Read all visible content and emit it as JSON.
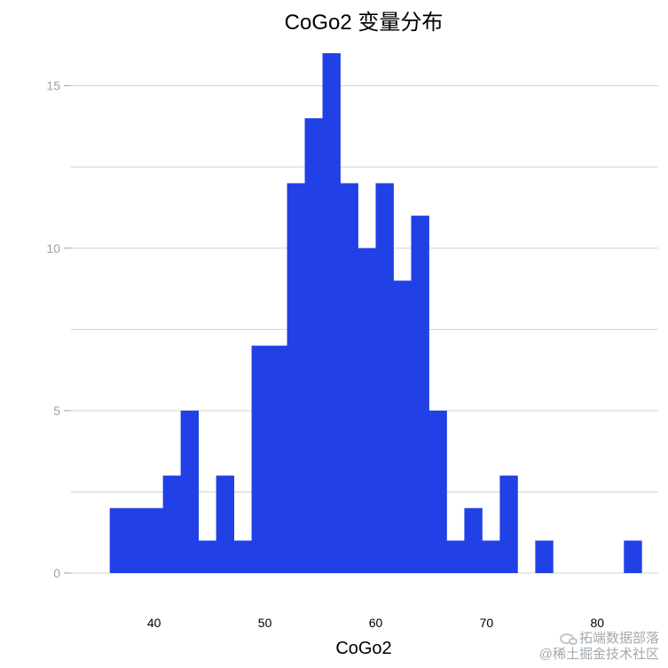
{
  "chart_data": {
    "type": "bar",
    "title": "CoGo2 变量分布",
    "xlabel": "CoGo2",
    "ylabel": "",
    "xlim": [
      32.5,
      85.5
    ],
    "ylim": [
      0,
      16
    ],
    "xticks": [
      40,
      50,
      60,
      70,
      80
    ],
    "yticks": [
      0,
      5,
      10,
      15
    ],
    "grid": true,
    "bin_width": 1.6,
    "bins": [
      {
        "x0": 36.0,
        "x1": 37.6,
        "count": 2
      },
      {
        "x0": 37.6,
        "x1": 39.2,
        "count": 2
      },
      {
        "x0": 39.2,
        "x1": 40.8,
        "count": 2
      },
      {
        "x0": 40.8,
        "x1": 42.4,
        "count": 3
      },
      {
        "x0": 42.4,
        "x1": 44.0,
        "count": 5
      },
      {
        "x0": 44.0,
        "x1": 45.6,
        "count": 1
      },
      {
        "x0": 45.6,
        "x1": 47.2,
        "count": 3
      },
      {
        "x0": 47.2,
        "x1": 48.8,
        "count": 1
      },
      {
        "x0": 48.8,
        "x1": 50.4,
        "count": 7
      },
      {
        "x0": 50.4,
        "x1": 52.0,
        "count": 7
      },
      {
        "x0": 52.0,
        "x1": 53.6,
        "count": 12
      },
      {
        "x0": 53.6,
        "x1": 55.2,
        "count": 14
      },
      {
        "x0": 55.2,
        "x1": 56.8,
        "count": 16
      },
      {
        "x0": 56.8,
        "x1": 58.4,
        "count": 12
      },
      {
        "x0": 58.4,
        "x1": 60.0,
        "count": 10
      },
      {
        "x0": 60.0,
        "x1": 61.6,
        "count": 12
      },
      {
        "x0": 61.6,
        "x1": 63.2,
        "count": 9
      },
      {
        "x0": 63.2,
        "x1": 64.8,
        "count": 11
      },
      {
        "x0": 64.8,
        "x1": 66.4,
        "count": 5
      },
      {
        "x0": 66.4,
        "x1": 68.0,
        "count": 1
      },
      {
        "x0": 68.0,
        "x1": 69.6,
        "count": 2
      },
      {
        "x0": 69.6,
        "x1": 71.2,
        "count": 1
      },
      {
        "x0": 71.2,
        "x1": 72.8,
        "count": 3
      },
      {
        "x0": 72.8,
        "x1": 74.4,
        "count": 0
      },
      {
        "x0": 74.4,
        "x1": 76.0,
        "count": 1
      },
      {
        "x0": 76.0,
        "x1": 77.6,
        "count": 0
      },
      {
        "x0": 77.6,
        "x1": 79.2,
        "count": 0
      },
      {
        "x0": 79.2,
        "x1": 80.8,
        "count": 0
      },
      {
        "x0": 80.8,
        "x1": 82.4,
        "count": 0
      },
      {
        "x0": 82.4,
        "x1": 84.0,
        "count": 1
      }
    ],
    "bar_color": "#2140e6",
    "grid_color": "#d3d3d3"
  },
  "watermark": {
    "line1": "拓端数据部落",
    "line2": "@稀土掘金技术社区",
    "icon": "wechat-icon"
  }
}
